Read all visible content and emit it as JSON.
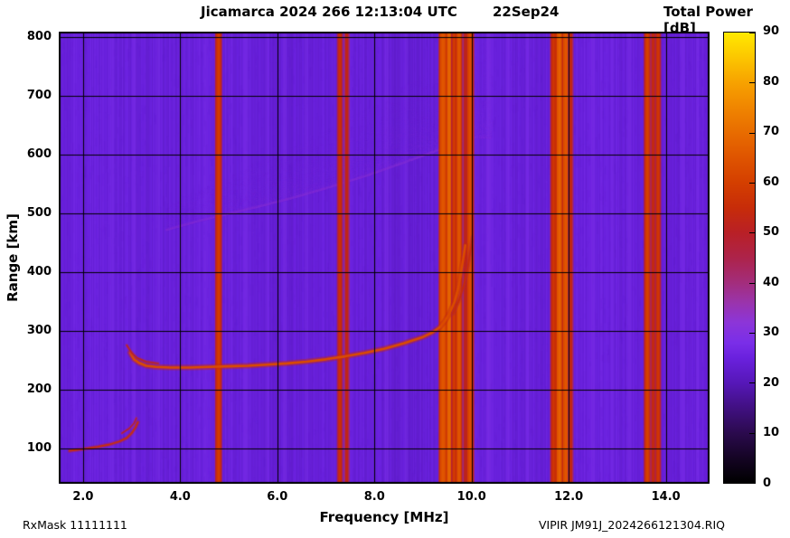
{
  "header": {
    "title": "Jicamarca 2024 266 12:13:04 UTC",
    "date": "22Sep24",
    "colorbar_title": "Total Power [dB]"
  },
  "footer": {
    "rx_mask": "RxMask 11111111",
    "filename": "VIPIR  JM91J_2024266121304.RIQ"
  },
  "chart_data": {
    "type": "heatmap",
    "title": "Jicamarca 2024 266 12:13:04 UTC   22Sep24",
    "xlabel": "Frequency [MHz]",
    "ylabel": "Range [km]",
    "colorbar_label": "Total Power [dB]",
    "xlim": [
      1.5,
      14.9
    ],
    "ylim": [
      40,
      810
    ],
    "zlim": [
      0,
      90
    ],
    "grid": true,
    "x_ticks": [
      {
        "value": 2.0,
        "label": "2.0"
      },
      {
        "value": 4.0,
        "label": "4.0"
      },
      {
        "value": 6.0,
        "label": "6.0"
      },
      {
        "value": 8.0,
        "label": "8.0"
      },
      {
        "value": 10.0,
        "label": "10.0"
      },
      {
        "value": 12.0,
        "label": "12.0"
      },
      {
        "value": 14.0,
        "label": "14.0"
      }
    ],
    "y_ticks": [
      {
        "value": 100,
        "label": "100"
      },
      {
        "value": 200,
        "label": "200"
      },
      {
        "value": 300,
        "label": "300"
      },
      {
        "value": 400,
        "label": "400"
      },
      {
        "value": 500,
        "label": "500"
      },
      {
        "value": 600,
        "label": "600"
      },
      {
        "value": 700,
        "label": "700"
      },
      {
        "value": 800,
        "label": "800"
      }
    ],
    "colorbar_ticks": [
      {
        "value": 0,
        "label": "0"
      },
      {
        "value": 10,
        "label": "10"
      },
      {
        "value": 20,
        "label": "20"
      },
      {
        "value": 30,
        "label": "30"
      },
      {
        "value": 40,
        "label": "40"
      },
      {
        "value": 50,
        "label": "50"
      },
      {
        "value": 60,
        "label": "60"
      },
      {
        "value": 70,
        "label": "70"
      },
      {
        "value": 80,
        "label": "80"
      },
      {
        "value": 90,
        "label": "90"
      }
    ],
    "palette_stops": [
      [
        0,
        "#000000"
      ],
      [
        5,
        "#150425"
      ],
      [
        10,
        "#2b0a4e"
      ],
      [
        15,
        "#411082"
      ],
      [
        20,
        "#5617b8"
      ],
      [
        25,
        "#6a21de"
      ],
      [
        28,
        "#7a2ee8"
      ],
      [
        32,
        "#8c35d8"
      ],
      [
        36,
        "#9a34ac"
      ],
      [
        40,
        "#a32d7c"
      ],
      [
        45,
        "#ad234a"
      ],
      [
        50,
        "#b92026"
      ],
      [
        55,
        "#c72c09"
      ],
      [
        60,
        "#d43f00"
      ],
      [
        65,
        "#df5400"
      ],
      [
        70,
        "#e86c00"
      ],
      [
        75,
        "#f08500"
      ],
      [
        80,
        "#f7a200"
      ],
      [
        85,
        "#fcc600"
      ],
      [
        90,
        "#ffe900"
      ]
    ],
    "background": {
      "base_db": 24.5,
      "noise_db": 2.6
    },
    "faint_stripes": [
      {
        "freq": 2.6,
        "width": 0.08,
        "power": 27.5
      },
      {
        "freq": 3.05,
        "width": 0.08,
        "power": 28
      },
      {
        "freq": 3.55,
        "width": 0.07,
        "power": 27.5
      },
      {
        "freq": 5.35,
        "width": 0.09,
        "power": 28
      },
      {
        "freq": 5.8,
        "width": 0.07,
        "power": 27.5
      },
      {
        "freq": 6.15,
        "width": 0.08,
        "power": 28
      },
      {
        "freq": 6.6,
        "width": 0.07,
        "power": 27.5
      },
      {
        "freq": 8.25,
        "width": 0.09,
        "power": 28
      },
      {
        "freq": 8.65,
        "width": 0.07,
        "power": 27.5
      },
      {
        "freq": 10.35,
        "width": 0.09,
        "power": 28.5
      },
      {
        "freq": 10.75,
        "width": 0.07,
        "power": 28
      },
      {
        "freq": 11.15,
        "width": 0.08,
        "power": 28
      },
      {
        "freq": 12.5,
        "width": 0.08,
        "power": 28
      },
      {
        "freq": 12.9,
        "width": 0.07,
        "power": 27.5
      },
      {
        "freq": 13.25,
        "width": 0.07,
        "power": 28
      },
      {
        "freq": 14.35,
        "width": 0.08,
        "power": 28
      },
      {
        "freq": 14.65,
        "width": 0.06,
        "power": 27.5
      }
    ],
    "rfi_stripes": [
      {
        "freq": 4.79,
        "width": 0.09,
        "power": 57
      },
      {
        "freq": 7.29,
        "width": 0.07,
        "power": 54
      },
      {
        "freq": 7.43,
        "width": 0.06,
        "power": 51
      },
      {
        "freq": 9.41,
        "width": 0.12,
        "power": 63
      },
      {
        "freq": 9.54,
        "width": 0.09,
        "power": 66
      },
      {
        "freq": 9.64,
        "width": 0.07,
        "power": 57
      },
      {
        "freq": 9.74,
        "width": 0.09,
        "power": 63
      },
      {
        "freq": 9.87,
        "width": 0.06,
        "power": 50
      },
      {
        "freq": 9.97,
        "width": 0.11,
        "power": 61
      },
      {
        "freq": 11.69,
        "width": 0.09,
        "power": 55
      },
      {
        "freq": 11.81,
        "width": 0.11,
        "power": 65
      },
      {
        "freq": 11.94,
        "width": 0.11,
        "power": 63
      },
      {
        "freq": 12.04,
        "width": 0.06,
        "power": 52
      },
      {
        "freq": 13.62,
        "width": 0.09,
        "power": 58
      },
      {
        "freq": 13.74,
        "width": 0.07,
        "power": 52
      },
      {
        "freq": 13.84,
        "width": 0.07,
        "power": 56
      }
    ],
    "diffuse_spread": {
      "arc": [
        [
          3.7,
          472
        ],
        [
          4.3,
          486
        ],
        [
          5.0,
          500
        ],
        [
          5.7,
          514
        ],
        [
          6.4,
          529
        ],
        [
          7.1,
          546
        ],
        [
          7.8,
          564
        ],
        [
          8.5,
          584
        ],
        [
          9.1,
          602
        ],
        [
          9.6,
          618
        ],
        [
          10.0,
          630
        ]
      ],
      "arc_power": 33,
      "haze_power": 30,
      "max_height_km": 165,
      "freq_range": [
        3.7,
        10.4
      ]
    },
    "traces": [
      {
        "name": "F-region main echo",
        "power": 63,
        "width": 2.6,
        "points": [
          [
            2.97,
            263
          ],
          [
            3.05,
            252
          ],
          [
            3.15,
            246
          ],
          [
            3.3,
            241
          ],
          [
            3.5,
            239
          ],
          [
            3.8,
            238
          ],
          [
            4.2,
            238
          ],
          [
            4.6,
            239
          ],
          [
            5.0,
            240
          ],
          [
            5.4,
            241
          ],
          [
            5.8,
            243
          ],
          [
            6.2,
            245
          ],
          [
            6.6,
            248
          ],
          [
            7.0,
            252
          ],
          [
            7.4,
            257
          ],
          [
            7.8,
            263
          ],
          [
            8.2,
            270
          ],
          [
            8.6,
            279
          ],
          [
            9.0,
            290
          ],
          [
            9.2,
            298
          ],
          [
            9.35,
            307
          ],
          [
            9.45,
            317
          ],
          [
            9.55,
            331
          ],
          [
            9.65,
            350
          ],
          [
            9.72,
            372
          ],
          [
            9.78,
            398
          ],
          [
            9.83,
            424
          ],
          [
            9.87,
            446
          ]
        ]
      },
      {
        "name": "F-region second mode",
        "power": 55,
        "width": 1.8,
        "points": [
          [
            9.62,
            330
          ],
          [
            9.74,
            352
          ],
          [
            9.84,
            378
          ],
          [
            9.92,
            408
          ],
          [
            9.98,
            438
          ],
          [
            10.02,
            460
          ]
        ]
      },
      {
        "name": "F cusp doubling",
        "power": 52,
        "width": 1.5,
        "points": [
          [
            2.9,
            276
          ],
          [
            3.0,
            263
          ],
          [
            3.12,
            254
          ],
          [
            3.3,
            248
          ],
          [
            3.55,
            245
          ]
        ]
      },
      {
        "name": "E-region echo",
        "power": 56,
        "width": 1.8,
        "points": [
          [
            1.72,
            96
          ],
          [
            2.0,
            99
          ],
          [
            2.3,
            103
          ],
          [
            2.55,
            107
          ],
          [
            2.75,
            112
          ],
          [
            2.9,
            118
          ],
          [
            3.0,
            126
          ],
          [
            3.08,
            136
          ],
          [
            3.13,
            145
          ]
        ]
      },
      {
        "name": "E-region doubling",
        "power": 50,
        "width": 1.4,
        "points": [
          [
            2.8,
            126
          ],
          [
            2.95,
            134
          ],
          [
            3.05,
            143
          ],
          [
            3.1,
            152
          ]
        ]
      }
    ]
  }
}
